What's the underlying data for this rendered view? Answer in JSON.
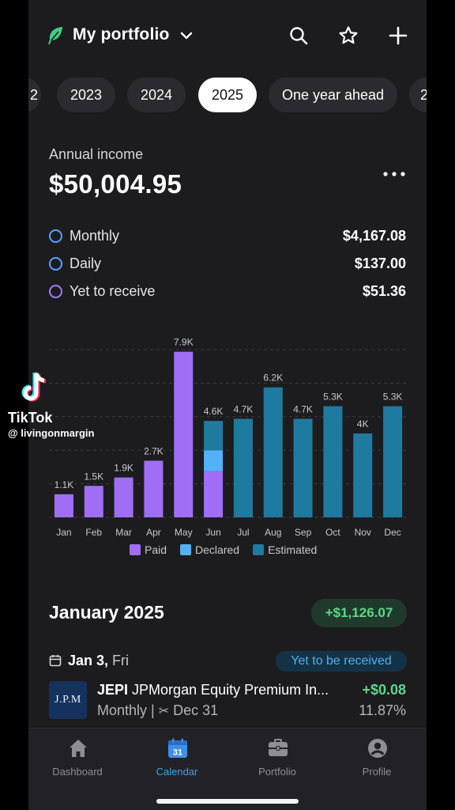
{
  "header": {
    "title": "My portfolio",
    "icons": [
      "leaf-logo-icon",
      "chevron-down-icon",
      "search-icon",
      "star-icon",
      "plus-icon"
    ]
  },
  "tabs": [
    {
      "label": "2"
    },
    {
      "label": "2023"
    },
    {
      "label": "2024"
    },
    {
      "label": "2025",
      "active": true
    },
    {
      "label": "One year ahead"
    },
    {
      "label": "2"
    }
  ],
  "income": {
    "label": "Annual income",
    "value": "$50,004.95",
    "rows": [
      {
        "label": "Monthly",
        "value": "$4,167.08",
        "color": "#55a3ff"
      },
      {
        "label": "Daily",
        "value": "$137.00",
        "color": "#55a3ff"
      },
      {
        "label": "Yet to receive",
        "value": "$51.36",
        "color": "#a07cf6"
      }
    ]
  },
  "chart_data": {
    "type": "bar",
    "categories": [
      "Jan",
      "Feb",
      "Mar",
      "Apr",
      "May",
      "Jun",
      "Jul",
      "Aug",
      "Sep",
      "Oct",
      "Nov",
      "Dec"
    ],
    "labels": [
      "1.1K",
      "1.5K",
      "1.9K",
      "2.7K",
      "7.9K",
      "4.6K",
      "4.7K",
      "6.2K",
      "4.7K",
      "5.3K",
      "4K",
      "5.3K"
    ],
    "series": [
      {
        "name": "Paid",
        "color": "#a06ef5",
        "values": [
          1100,
          1500,
          1900,
          2700,
          7900,
          2200,
          0,
          0,
          0,
          0,
          0,
          0
        ]
      },
      {
        "name": "Declared",
        "color": "#52b2f5",
        "values": [
          0,
          0,
          0,
          0,
          0,
          1000,
          0,
          0,
          0,
          0,
          0,
          0
        ]
      },
      {
        "name": "Estimated",
        "color": "#1f7aa0",
        "values": [
          0,
          0,
          0,
          0,
          0,
          1400,
          4700,
          6200,
          4700,
          5300,
          4000,
          5300
        ]
      }
    ],
    "ylim": [
      0,
      8000
    ],
    "grid": true,
    "legend": "bottom"
  },
  "month": {
    "title": "January 2025",
    "total": "+$1,126.07",
    "date_bold": "Jan 3,",
    "date_day": "Fri",
    "status": "Yet to be received"
  },
  "holding": {
    "logo": "J.P.M",
    "ticker": "JEPI",
    "name": "JPMorgan Equity Premium In...",
    "frequency": "Monthly |",
    "ex_date": "Dec 31",
    "amount": "+$0.08",
    "yield": "11.87%"
  },
  "nav": [
    {
      "label": "Dashboard",
      "icon": "home-icon"
    },
    {
      "label": "Calendar",
      "icon": "calendar-icon",
      "badge": "31",
      "active": true
    },
    {
      "label": "Portfolio",
      "icon": "briefcase-icon"
    },
    {
      "label": "Profile",
      "icon": "profile-icon"
    }
  ],
  "watermark": {
    "brand": "TikTok",
    "handle": "@ livingonmargin"
  }
}
